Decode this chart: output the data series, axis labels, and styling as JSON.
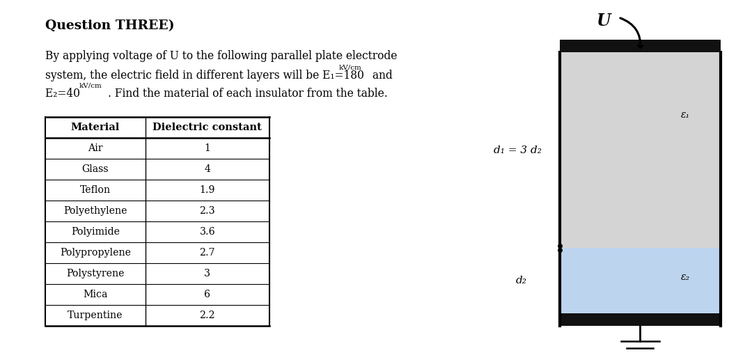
{
  "title": "Question THREE)",
  "table_headers": [
    "Material",
    "Dielectric constant"
  ],
  "table_data": [
    [
      "Air",
      "1"
    ],
    [
      "Glass",
      "4"
    ],
    [
      "Teflon",
      "1.9"
    ],
    [
      "Polyethylene",
      "2.3"
    ],
    [
      "Polyimide",
      "3.6"
    ],
    [
      "Polypropylene",
      "2.7"
    ],
    [
      "Polystyrene",
      "3"
    ],
    [
      "Mica",
      "6"
    ],
    [
      "Turpentine",
      "2.2"
    ]
  ],
  "layer1_color": "#d4d4d4",
  "layer2_color": "#bdd4ee",
  "electrode_color": "#111111",
  "bg_color": "#ffffff",
  "d1_label": "d₁ = 3 d₂",
  "d2_label": "d₂",
  "e1_label": "ε₁",
  "e2_label": "ε₂",
  "U_label": "U",
  "text_line1": "By applying voltage of U to the following parallel plate electrode",
  "text_line2a": "system, the electric field in different layers will be E",
  "text_line2b": "₁=180 ",
  "text_line2sup": "kV/cm",
  "text_line2c": " and",
  "text_line3a": "E",
  "text_line3b": "₂=40 ",
  "text_line3sup": "kV/cm",
  "text_line3c": ". Find the material of each insulator from the table."
}
